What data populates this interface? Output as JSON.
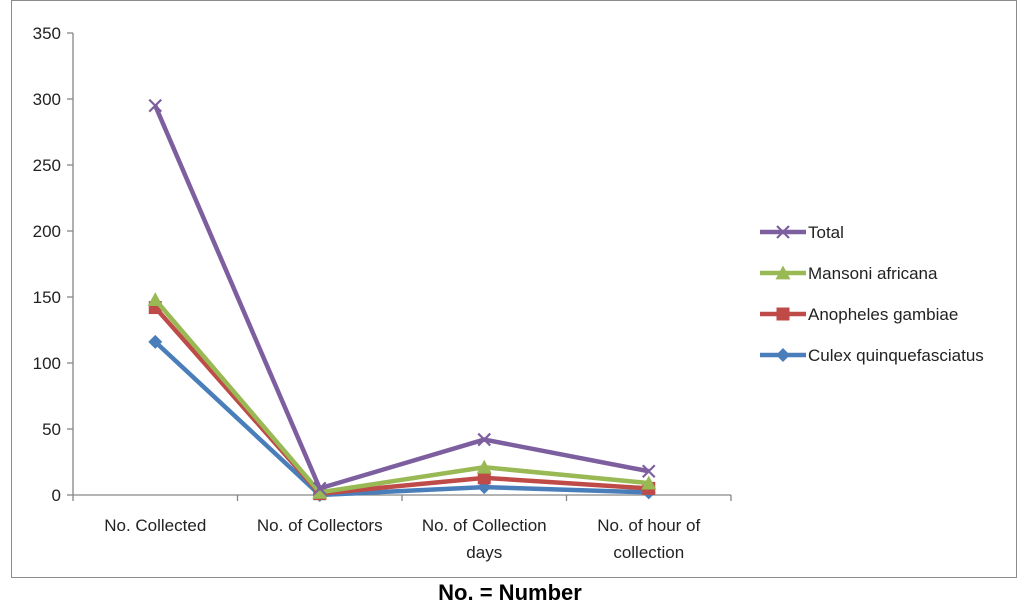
{
  "chart_data": {
    "type": "line",
    "categories": [
      [
        "No. Collected"
      ],
      [
        "No. of Collectors"
      ],
      [
        "No. of Collection",
        "days"
      ],
      [
        "No. of hour of",
        "collection"
      ]
    ],
    "ylim": [
      0,
      350
    ],
    "yticks": [
      0,
      50,
      100,
      150,
      200,
      250,
      300,
      350
    ],
    "grid": false,
    "legend_position": "right",
    "series": [
      {
        "name": "Culex quinquefasciatus",
        "values": [
          116,
          0,
          6,
          2
        ],
        "color": "#4a7ebb",
        "marker": "diamond"
      },
      {
        "name": "Anopheles gambiae",
        "values": [
          142,
          1,
          13,
          5
        ],
        "color": "#be4b48",
        "marker": "square"
      },
      {
        "name": "Mansoni africana",
        "values": [
          148,
          2,
          21,
          9
        ],
        "color": "#98b954",
        "marker": "triangle"
      },
      {
        "name": "Total",
        "values": [
          295,
          5,
          42,
          18
        ],
        "color": "#7d5fa0",
        "marker": "x"
      }
    ],
    "legend_order": [
      "Total",
      "Mansoni africana",
      "Anopheles gambiae",
      "Culex quinquefasciatus"
    ]
  },
  "caption": "No. = Number"
}
